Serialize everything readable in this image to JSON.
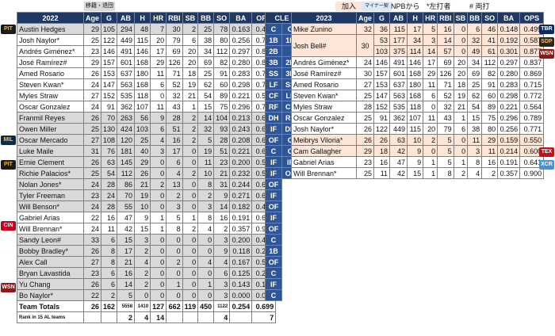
{
  "legend": {
    "l1": "移籍・退団",
    "l2": "",
    "l3": "加入",
    "l4": "マイナー契約",
    "l5": "NPBから",
    "l6": "*左打者",
    "l7": "# 両打"
  },
  "left": {
    "year": "2022",
    "headers": [
      "Age",
      "G",
      "AB",
      "H",
      "HR",
      "RBI",
      "SB",
      "BB",
      "SO",
      "BA",
      "OPS"
    ],
    "rows": [
      {
        "tag": "PIT",
        "name": "Austin Hedges",
        "cls": "grey",
        "v": [
          "29",
          "105",
          "294",
          "48",
          "7",
          "30",
          "2",
          "25",
          "78",
          "0.163",
          "0.489"
        ]
      },
      {
        "tag": "",
        "name": "Josh Naylor*",
        "cls": "wht",
        "v": [
          "25",
          "122",
          "449",
          "115",
          "20",
          "79",
          "6",
          "38",
          "80",
          "0.256",
          "0.771"
        ]
      },
      {
        "tag": "",
        "name": "Andrés Giménez*",
        "cls": "wht",
        "v": [
          "23",
          "146",
          "491",
          "146",
          "17",
          "69",
          "20",
          "34",
          "112",
          "0.297",
          "0.837"
        ]
      },
      {
        "tag": "",
        "name": "José Ramírez#",
        "cls": "wht",
        "v": [
          "29",
          "157",
          "601",
          "168",
          "29",
          "126",
          "20",
          "69",
          "82",
          "0.280",
          "0.869"
        ]
      },
      {
        "tag": "",
        "name": "Amed Rosario",
        "cls": "wht",
        "v": [
          "26",
          "153",
          "637",
          "180",
          "11",
          "71",
          "18",
          "25",
          "91",
          "0.283",
          "0.715"
        ]
      },
      {
        "tag": "",
        "name": "Steven Kwan*",
        "cls": "wht",
        "v": [
          "24",
          "147",
          "563",
          "168",
          "6",
          "52",
          "19",
          "62",
          "60",
          "0.298",
          "0.772"
        ]
      },
      {
        "tag": "",
        "name": "Myles Straw",
        "cls": "wht",
        "v": [
          "27",
          "152",
          "535",
          "118",
          "0",
          "32",
          "21",
          "54",
          "89",
          "0.221",
          "0.564"
        ]
      },
      {
        "tag": "",
        "name": "Oscar Gonzalez",
        "cls": "wht",
        "v": [
          "24",
          "91",
          "362",
          "107",
          "11",
          "43",
          "1",
          "15",
          "75",
          "0.296",
          "0.789"
        ]
      },
      {
        "tag": "",
        "name": "Franmil Reyes",
        "cls": "grey",
        "v": [
          "26",
          "70",
          "263",
          "56",
          "9",
          "28",
          "2",
          "14",
          "104",
          "0.213",
          "0.603"
        ]
      },
      {
        "tag": "MIL",
        "name": "Owen Miller",
        "cls": "grey",
        "v": [
          "25",
          "130",
          "424",
          "103",
          "6",
          "51",
          "2",
          "32",
          "93",
          "0.243",
          "0.652"
        ]
      },
      {
        "tag": "",
        "name": "Oscar Mercado",
        "cls": "grey",
        "v": [
          "27",
          "108",
          "120",
          "25",
          "4",
          "16",
          "2",
          "5",
          "28",
          "0.208",
          "0.619"
        ]
      },
      {
        "tag": "PIT",
        "name": "Luke Maile",
        "cls": "grey",
        "v": [
          "31",
          "76",
          "181",
          "40",
          "3",
          "17",
          "0",
          "19",
          "51",
          "0.221",
          "0.627"
        ]
      },
      {
        "tag": "",
        "name": "Ernie Clement",
        "cls": "grey",
        "v": [
          "26",
          "63",
          "145",
          "29",
          "0",
          "6",
          "0",
          "11",
          "23",
          "0.200",
          "0.535"
        ]
      },
      {
        "tag": "",
        "name": "Richie Palacios*",
        "cls": "grey",
        "v": [
          "25",
          "54",
          "112",
          "26",
          "0",
          "4",
          "2",
          "10",
          "21",
          "0.232",
          "0.567"
        ]
      },
      {
        "tag": "",
        "name": "Nolan Jones*",
        "cls": "grey",
        "v": [
          "24",
          "28",
          "86",
          "21",
          "2",
          "13",
          "0",
          "8",
          "31",
          "0.244",
          "0.681"
        ]
      },
      {
        "tag": "",
        "name": "Tyler Freeman",
        "cls": "grey",
        "v": [
          "23",
          "24",
          "70",
          "19",
          "0",
          "2",
          "0",
          "2",
          "9",
          "0.271",
          "0.659"
        ]
      },
      {
        "tag": "CIN",
        "name": "Will Benson*",
        "cls": "grey",
        "v": [
          "24",
          "28",
          "55",
          "10",
          "0",
          "3",
          "0",
          "3",
          "14",
          "0.182",
          "0.428"
        ]
      },
      {
        "tag": "",
        "name": "Gabriel Arias",
        "cls": "wht",
        "v": [
          "22",
          "16",
          "47",
          "9",
          "1",
          "5",
          "1",
          "8",
          "16",
          "0.191",
          "0.641"
        ]
      },
      {
        "tag": "",
        "name": "Will Brennan*",
        "cls": "wht",
        "v": [
          "24",
          "11",
          "42",
          "15",
          "1",
          "8",
          "2",
          "4",
          "2",
          "0.357",
          "0.900"
        ]
      },
      {
        "tag": "",
        "name": "Sandy Leon#",
        "cls": "grey",
        "v": [
          "33",
          "6",
          "15",
          "3",
          "0",
          "0",
          "0",
          "0",
          "3",
          "0.200",
          "0.400"
        ]
      },
      {
        "tag": "",
        "name": "Bobby Bradley*",
        "cls": "grey",
        "v": [
          "26",
          "8",
          "17",
          "2",
          "0",
          "0",
          "0",
          "0",
          "9",
          "0.118",
          "0.235"
        ]
      },
      {
        "tag": "WSN",
        "name": "Alex Call",
        "cls": "grey",
        "v": [
          "27",
          "8",
          "21",
          "4",
          "0",
          "2",
          "0",
          "4",
          "4",
          "0.167",
          "0.542"
        ]
      },
      {
        "tag": "",
        "name": "Bryan Lavastida",
        "cls": "grey",
        "v": [
          "23",
          "6",
          "16",
          "2",
          "0",
          "0",
          "0",
          "0",
          "6",
          "0.125",
          "0.250"
        ]
      },
      {
        "tag": "",
        "name": "Yu Chang",
        "cls": "grey",
        "v": [
          "26",
          "6",
          "14",
          "2",
          "0",
          "1",
          "0",
          "1",
          "3",
          "0.143",
          "0.143"
        ]
      },
      {
        "tag": "",
        "name": "Bo Naylor*",
        "cls": "grey",
        "v": [
          "22",
          "2",
          "5",
          "0",
          "0",
          "0",
          "0",
          "0",
          "3",
          "0.000",
          "0.000"
        ]
      }
    ],
    "totals": {
      "name": "Team Totals",
      "v": [
        "26",
        "162",
        "5558",
        "1410",
        "127",
        "662",
        "119",
        "450",
        "1122",
        "0.254",
        "0.699"
      ]
    },
    "rank": {
      "name": "Rank in 15 AL teams",
      "v": [
        "",
        "",
        "2",
        "4",
        "14",
        "",
        "",
        "",
        "4",
        "",
        "7"
      ]
    }
  },
  "pos": {
    "header": "CLE",
    "left": [
      "C",
      "1B",
      "2B",
      "3B",
      "SS",
      "LF",
      "CF",
      "RF",
      "DH",
      "IF",
      "OF",
      "C",
      "IF",
      "IF",
      "OF",
      "IF",
      "OF",
      "IF",
      "OF",
      "C",
      "1B",
      "OF",
      "C",
      "IF",
      "C"
    ],
    "right": [
      "",
      "",
      "",
      "",
      "",
      "",
      "",
      "",
      "",
      "",
      "",
      "",
      "",
      "",
      "",
      "",
      "",
      "",
      "",
      "",
      "",
      "",
      "",
      "",
      ""
    ]
  },
  "right": {
    "year": "2023",
    "headers": [
      "Age",
      "G",
      "AB",
      "H",
      "HR",
      "RBI",
      "SB",
      "BB",
      "SO",
      "BA",
      "OPS"
    ],
    "rows": [
      {
        "tag": "TBR",
        "name": "Mike Zunino",
        "cls": "add",
        "v": [
          "32",
          "36",
          "115",
          "17",
          "5",
          "16",
          "0",
          "6",
          "46",
          "0.148",
          "0.499"
        ]
      },
      {
        "tag": "SDP",
        "name": "Josh Bell#",
        "cls": "add",
        "age": "30",
        "v": [
          "",
          "53",
          "177",
          "34",
          "3",
          "14",
          "0",
          "32",
          "41",
          "0.192",
          "0.587"
        ]
      },
      {
        "tag": "WSN",
        "name": "",
        "cls": "add",
        "v": [
          "",
          "103",
          "375",
          "114",
          "14",
          "57",
          "0",
          "49",
          "61",
          "0.301",
          "0.877"
        ]
      },
      {
        "tag": "",
        "name": "Andrés Giménez*",
        "cls": "wht",
        "v": [
          "24",
          "146",
          "491",
          "146",
          "17",
          "69",
          "20",
          "34",
          "112",
          "0.297",
          "0.837"
        ]
      },
      {
        "tag": "",
        "name": "José Ramírez#",
        "cls": "wht",
        "v": [
          "30",
          "157",
          "601",
          "168",
          "29",
          "126",
          "20",
          "69",
          "82",
          "0.280",
          "0.869"
        ]
      },
      {
        "tag": "",
        "name": "Amed Rosario",
        "cls": "wht",
        "v": [
          "27",
          "153",
          "637",
          "180",
          "11",
          "71",
          "18",
          "25",
          "91",
          "0.283",
          "0.715"
        ]
      },
      {
        "tag": "",
        "name": "Steven Kwan*",
        "cls": "wht",
        "v": [
          "25",
          "147",
          "563",
          "168",
          "6",
          "52",
          "19",
          "62",
          "60",
          "0.298",
          "0.772"
        ]
      },
      {
        "tag": "",
        "name": "Myles Straw",
        "cls": "wht",
        "v": [
          "28",
          "152",
          "535",
          "118",
          "0",
          "32",
          "21",
          "54",
          "89",
          "0.221",
          "0.564"
        ]
      },
      {
        "tag": "",
        "name": "Oscar Gonzalez",
        "cls": "wht",
        "v": [
          "25",
          "91",
          "362",
          "107",
          "11",
          "43",
          "1",
          "15",
          "75",
          "0.296",
          "0.789"
        ]
      },
      {
        "tag": "",
        "name": "Josh Naylor*",
        "cls": "wht",
        "v": [
          "26",
          "122",
          "449",
          "115",
          "20",
          "79",
          "6",
          "38",
          "80",
          "0.256",
          "0.771"
        ]
      },
      {
        "tag": "TEX",
        "name": "Meibrys Viloria*",
        "cls": "add",
        "v": [
          "26",
          "26",
          "63",
          "10",
          "2",
          "5",
          "0",
          "11",
          "29",
          "0.159",
          "0.550"
        ]
      },
      {
        "tag": "XCR",
        "name": "Cam Gallagher",
        "cls": "add",
        "v": [
          "29",
          "18",
          "42",
          "9",
          "0",
          "5",
          "0",
          "3",
          "11",
          "0.214",
          "0.600"
        ]
      },
      {
        "tag": "",
        "name": "Gabriel Arias",
        "cls": "wht",
        "v": [
          "23",
          "16",
          "47",
          "9",
          "1",
          "5",
          "1",
          "8",
          "16",
          "0.191",
          "0.641"
        ]
      },
      {
        "tag": "",
        "name": "Will Brennan*",
        "cls": "wht",
        "v": [
          "25",
          "11",
          "42",
          "15",
          "1",
          "8",
          "2",
          "4",
          "2",
          "0.357",
          "0.900"
        ]
      }
    ],
    "pos": [
      "C",
      "1B",
      "",
      "2B",
      "3B",
      "SS",
      "LF",
      "CF",
      "RF",
      "DH",
      "C",
      "C",
      "IF",
      "OF"
    ]
  },
  "colors": {
    "header": "#1f3864",
    "pos": "#2f5597",
    "removed": "#d9d9d9",
    "added": "#fde5d8",
    "minor": "#dbe9f6"
  }
}
